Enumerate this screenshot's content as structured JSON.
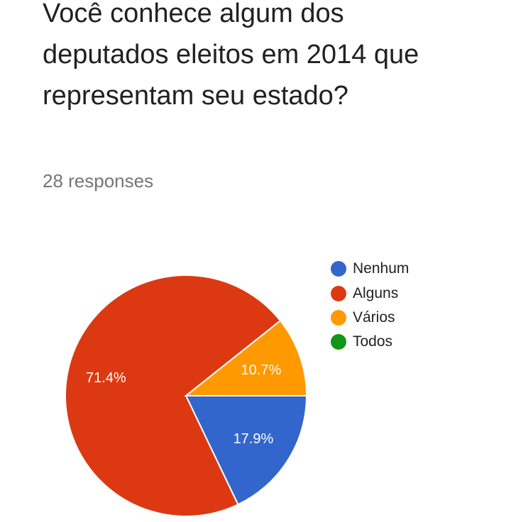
{
  "question": {
    "title": "Você conhece algum dos deputados eleitos em 2014 que representam seu estado?",
    "responses": "28 responses"
  },
  "chart_data": {
    "type": "pie",
    "categories": [
      "Nenhum",
      "Alguns",
      "Vários",
      "Todos"
    ],
    "values": [
      17.9,
      71.4,
      10.7,
      0
    ],
    "labels": [
      "17.9%",
      "71.4%",
      "10.7%",
      ""
    ],
    "colors": [
      "#3366cc",
      "#dc3912",
      "#ff9900",
      "#109618"
    ],
    "legend_position": "right"
  }
}
